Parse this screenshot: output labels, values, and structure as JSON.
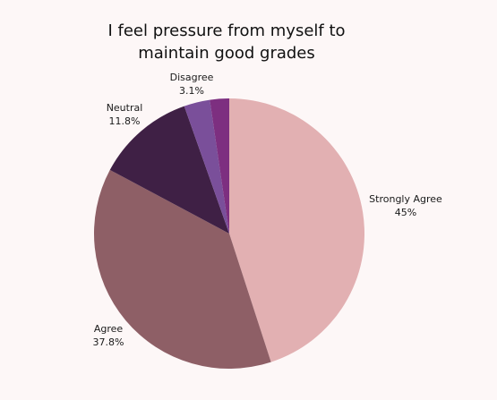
{
  "chart_data": {
    "type": "pie",
    "title_lines": [
      "I feel pressure from myself to",
      "maintain good grades"
    ],
    "slices": [
      {
        "label": "Strongly Agree",
        "value": 45,
        "value_label": "45%",
        "color": "#e2b0b2"
      },
      {
        "label": "Agree",
        "value": 37.8,
        "value_label": "37.8%",
        "color": "#8e5f66"
      },
      {
        "label": "Neutral",
        "value": 11.8,
        "value_label": "11.8%",
        "color": "#3f2045"
      },
      {
        "label": "Disagree",
        "value": 3.1,
        "value_label": "3.1%",
        "color": "#7a4f9a"
      },
      {
        "label": "",
        "value": 2.3,
        "value_label": "",
        "color": "#7d2f80"
      }
    ],
    "start_angle_deg": 0,
    "direction": "clockwise",
    "legend": "none"
  }
}
